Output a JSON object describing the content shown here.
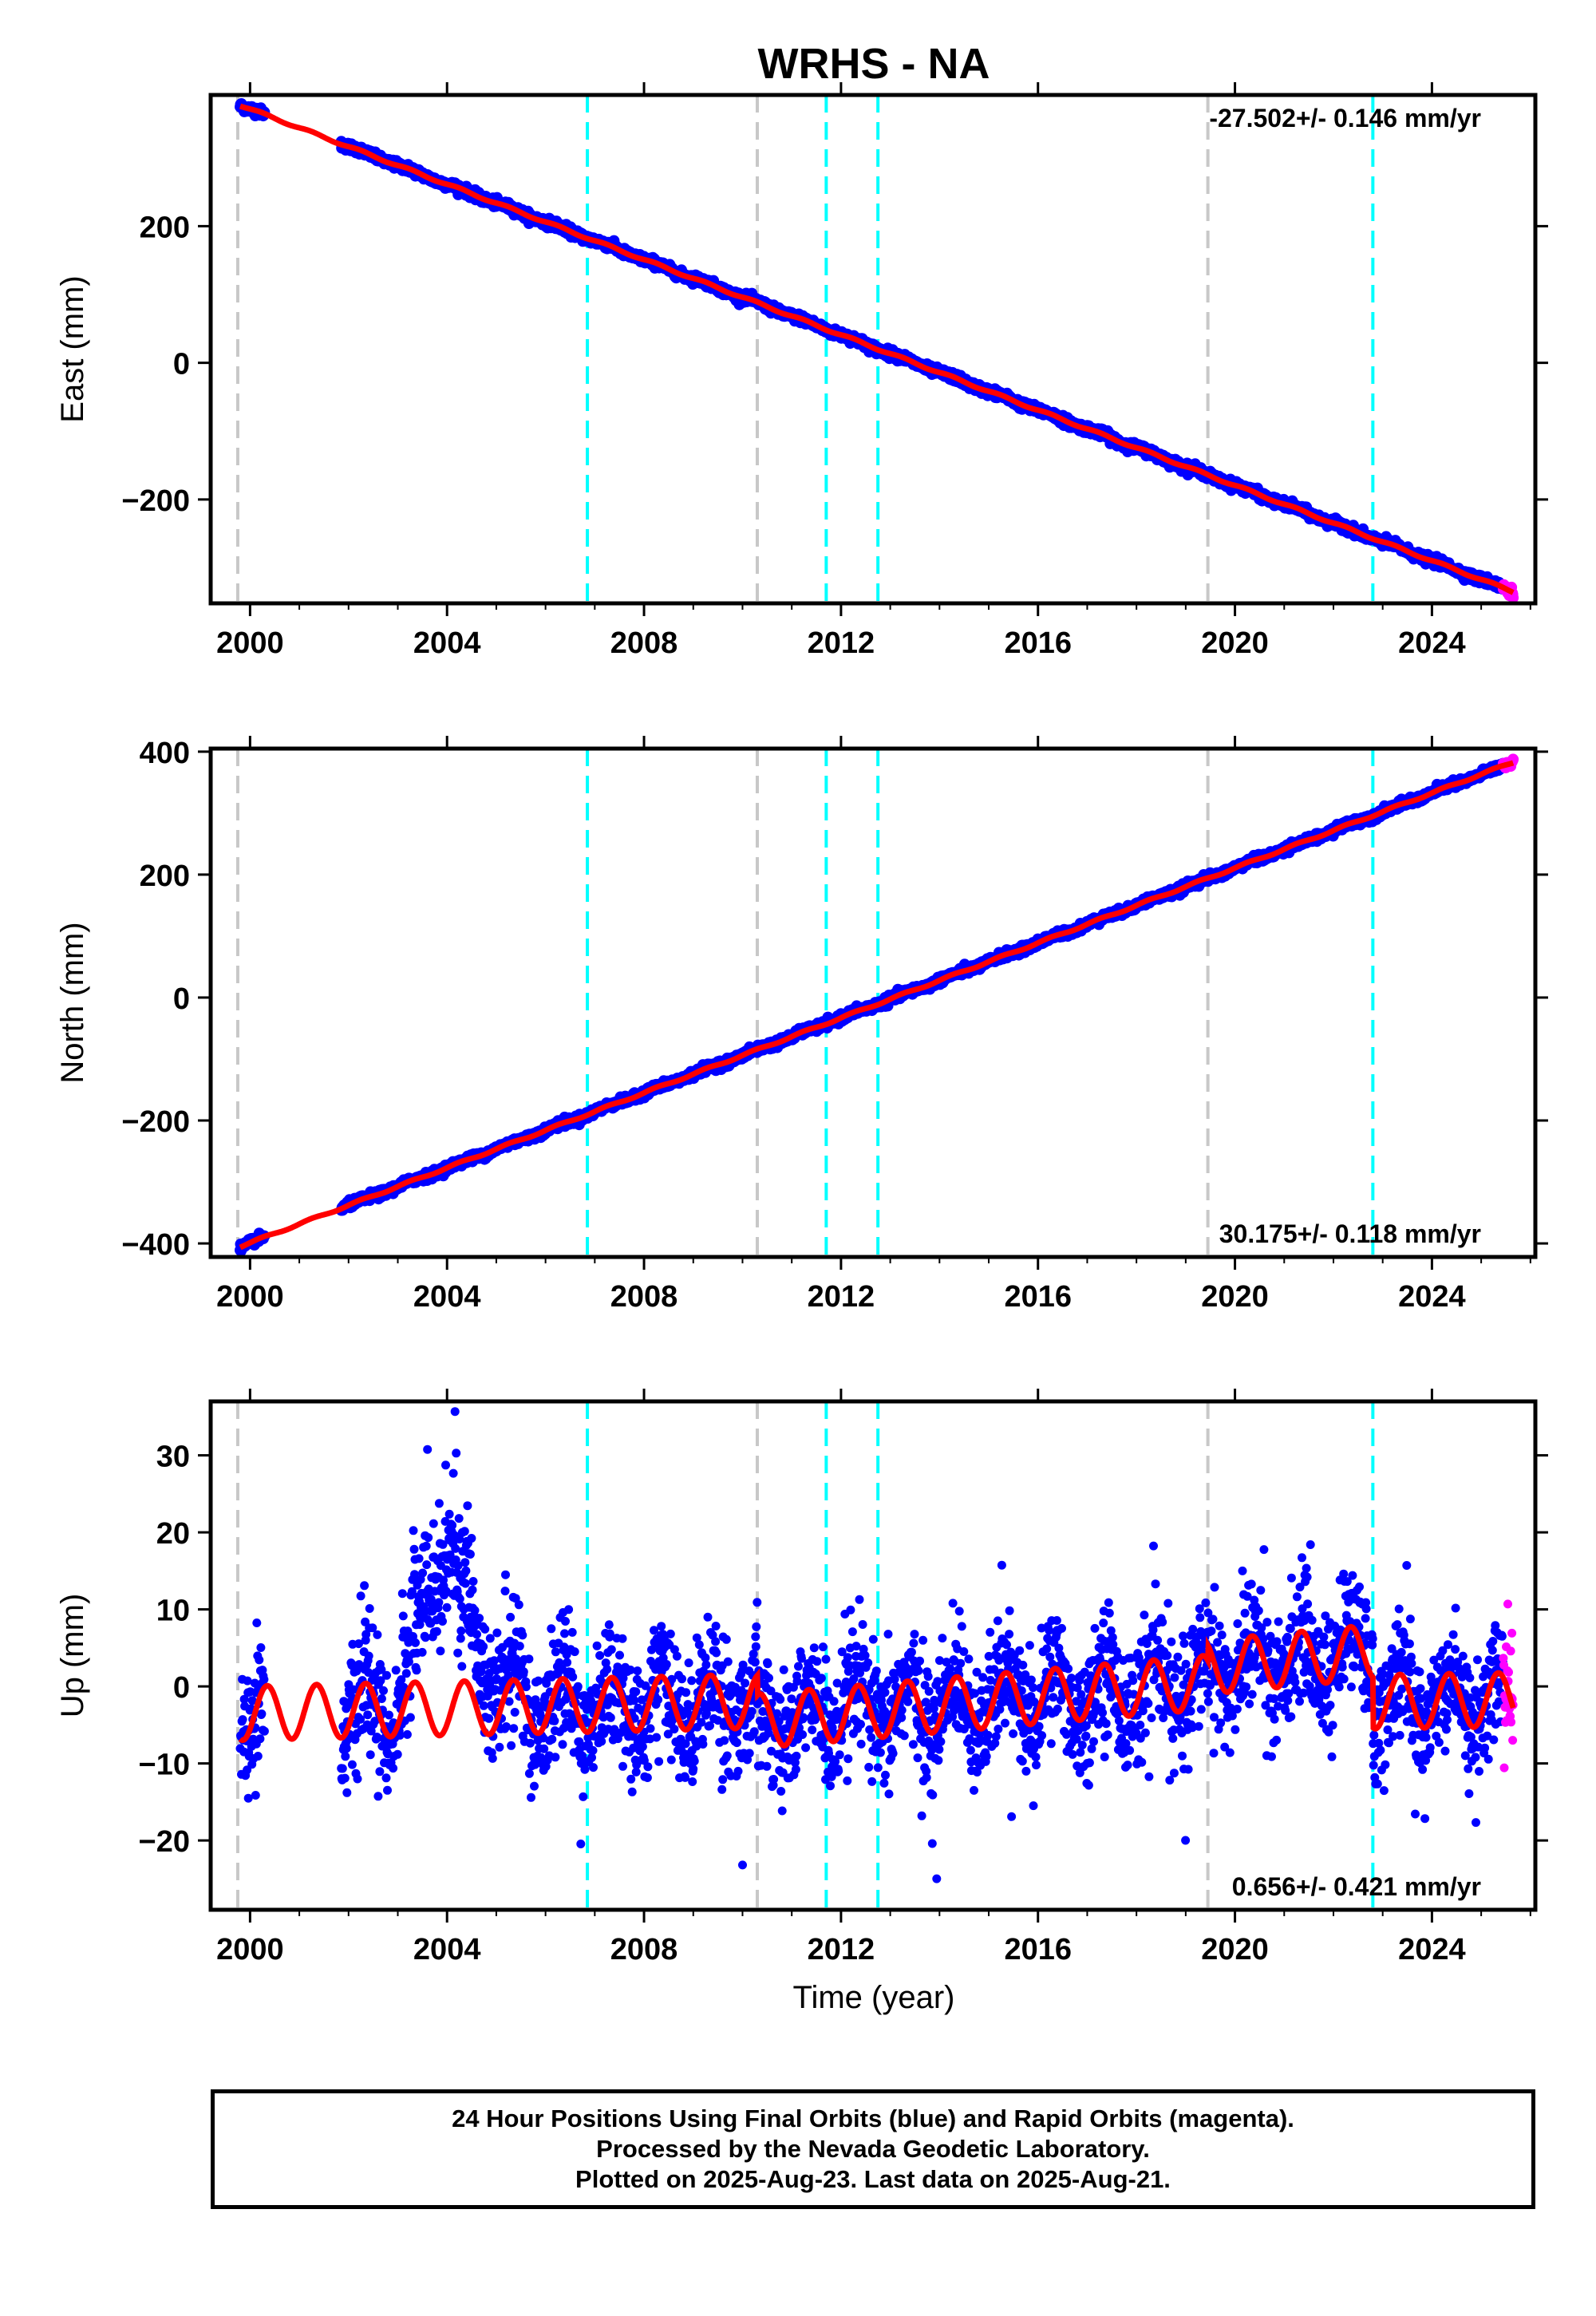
{
  "title": "WRHS - NA",
  "x_axis_label": "Time (year)",
  "caption": {
    "line1": "24 Hour Positions Using Final Orbits (blue) and Rapid Orbits (magenta).",
    "line2": "Processed by the Nevada Geodetic Laboratory.",
    "line3": "Plotted on 2025-Aug-23. Last data on 2025-Aug-21."
  },
  "colors": {
    "final_orbits": "#0000ff",
    "rapid_orbits": "#ff00ff",
    "model_fit": "#ff0000",
    "cyan_event": "#00ffff",
    "gray_event": "#c8c8c8"
  },
  "chart_data": [
    {
      "type": "scatter",
      "panel": "east",
      "ylabel": "East (mm)",
      "xlim": [
        1999.2,
        2026.1
      ],
      "ylim": [
        -352,
        392
      ],
      "x_ticks": [
        "2000",
        "2004",
        "2008",
        "2012",
        "2016",
        "2020",
        "2024"
      ],
      "y_ticks": [
        "200",
        "0",
        "−200"
      ],
      "y_tick_values": [
        200,
        0,
        -200
      ],
      "rate_label": "-27.502+/- 0.146 mm/yr",
      "rate_position": "top-right",
      "rate_mm_per_yr": -27.502,
      "rate_uncertainty": 0.146,
      "start_year": 1999.8,
      "end_year": 2025.65,
      "start_value": 377,
      "end_value": -335,
      "annual_amplitude": 1.5,
      "noise_mm": 3,
      "data_gap": [
        2000.3,
        2001.85
      ],
      "rapid_start_year": 2025.45,
      "gray_lines": [
        1999.75,
        2010.3,
        2019.45
      ],
      "cyan_lines": [
        2006.85,
        2011.7,
        2012.75,
        2022.8
      ],
      "series": [
        {
          "name": "Final Orbits (blue)",
          "color": "#0000ff"
        },
        {
          "name": "Rapid Orbits (magenta)",
          "color": "#ff00ff"
        }
      ]
    },
    {
      "type": "scatter",
      "panel": "north",
      "ylabel": "North (mm)",
      "xlim": [
        1999.2,
        2026.1
      ],
      "ylim": [
        -422,
        405
      ],
      "x_ticks": [
        "2000",
        "2004",
        "2008",
        "2012",
        "2016",
        "2020",
        "2024"
      ],
      "y_ticks": [
        "400",
        "200",
        "0",
        "−200",
        "−400"
      ],
      "y_tick_values": [
        400,
        200,
        0,
        -200,
        -400
      ],
      "rate_label": "30.175+/- 0.118 mm/yr",
      "rate_position": "bottom-right",
      "rate_mm_per_yr": 30.175,
      "rate_uncertainty": 0.118,
      "start_year": 1999.8,
      "end_year": 2025.65,
      "start_value": -405,
      "end_value": 383,
      "annual_amplitude": 1.5,
      "noise_mm": 3,
      "data_gap": [
        2000.3,
        2001.85
      ],
      "rapid_start_year": 2025.45,
      "gray_lines": [
        1999.75,
        2010.3,
        2019.45
      ],
      "cyan_lines": [
        2006.85,
        2011.7,
        2012.75,
        2022.8
      ],
      "series": [
        {
          "name": "Final Orbits (blue)",
          "color": "#0000ff"
        },
        {
          "name": "Rapid Orbits (magenta)",
          "color": "#ff00ff"
        }
      ]
    },
    {
      "type": "scatter",
      "panel": "up",
      "ylabel": "Up (mm)",
      "xlim": [
        1999.2,
        2026.1
      ],
      "ylim": [
        -29,
        37
      ],
      "x_ticks": [
        "2000",
        "2004",
        "2008",
        "2012",
        "2016",
        "2020",
        "2024"
      ],
      "y_ticks": [
        "30",
        "20",
        "10",
        "0",
        "−10",
        "−20"
      ],
      "y_tick_values": [
        30,
        20,
        10,
        0,
        -10,
        -20
      ],
      "rate_label": "0.656+/- 0.421 mm/yr",
      "rate_position": "bottom-right",
      "rate_mm_per_yr": 0.656,
      "rate_uncertainty": 0.421,
      "start_year": 1999.8,
      "end_year": 2025.65,
      "data_gap": [
        2000.3,
        2001.85
      ],
      "rapid_start_year": 2025.45,
      "gray_lines": [
        1999.75,
        2010.3,
        2019.45
      ],
      "cyan_lines": [
        2006.85,
        2011.7,
        2012.75,
        2022.8
      ],
      "model_segments": [
        {
          "from": 1999.75,
          "to": 2010.3,
          "offset": -3.5,
          "trend": 0.15
        },
        {
          "from": 2010.3,
          "to": 2019.45,
          "offset": -4.5,
          "trend": 0.55
        },
        {
          "from": 2019.45,
          "to": 2022.8,
          "offset": 2.5,
          "trend": 0.6
        },
        {
          "from": 2022.8,
          "to": 2025.65,
          "offset": -2,
          "trend": 0.1
        }
      ],
      "model_annual_amplitude": 3.5,
      "noise_mm": 4,
      "anomaly": {
        "from": 2003.0,
        "to": 2005.6,
        "peak_year": 2004.0,
        "peak_mm": 18
      },
      "series": [
        {
          "name": "Final Orbits (blue)",
          "color": "#0000ff"
        },
        {
          "name": "Rapid Orbits (magenta)",
          "color": "#ff00ff"
        }
      ]
    }
  ]
}
